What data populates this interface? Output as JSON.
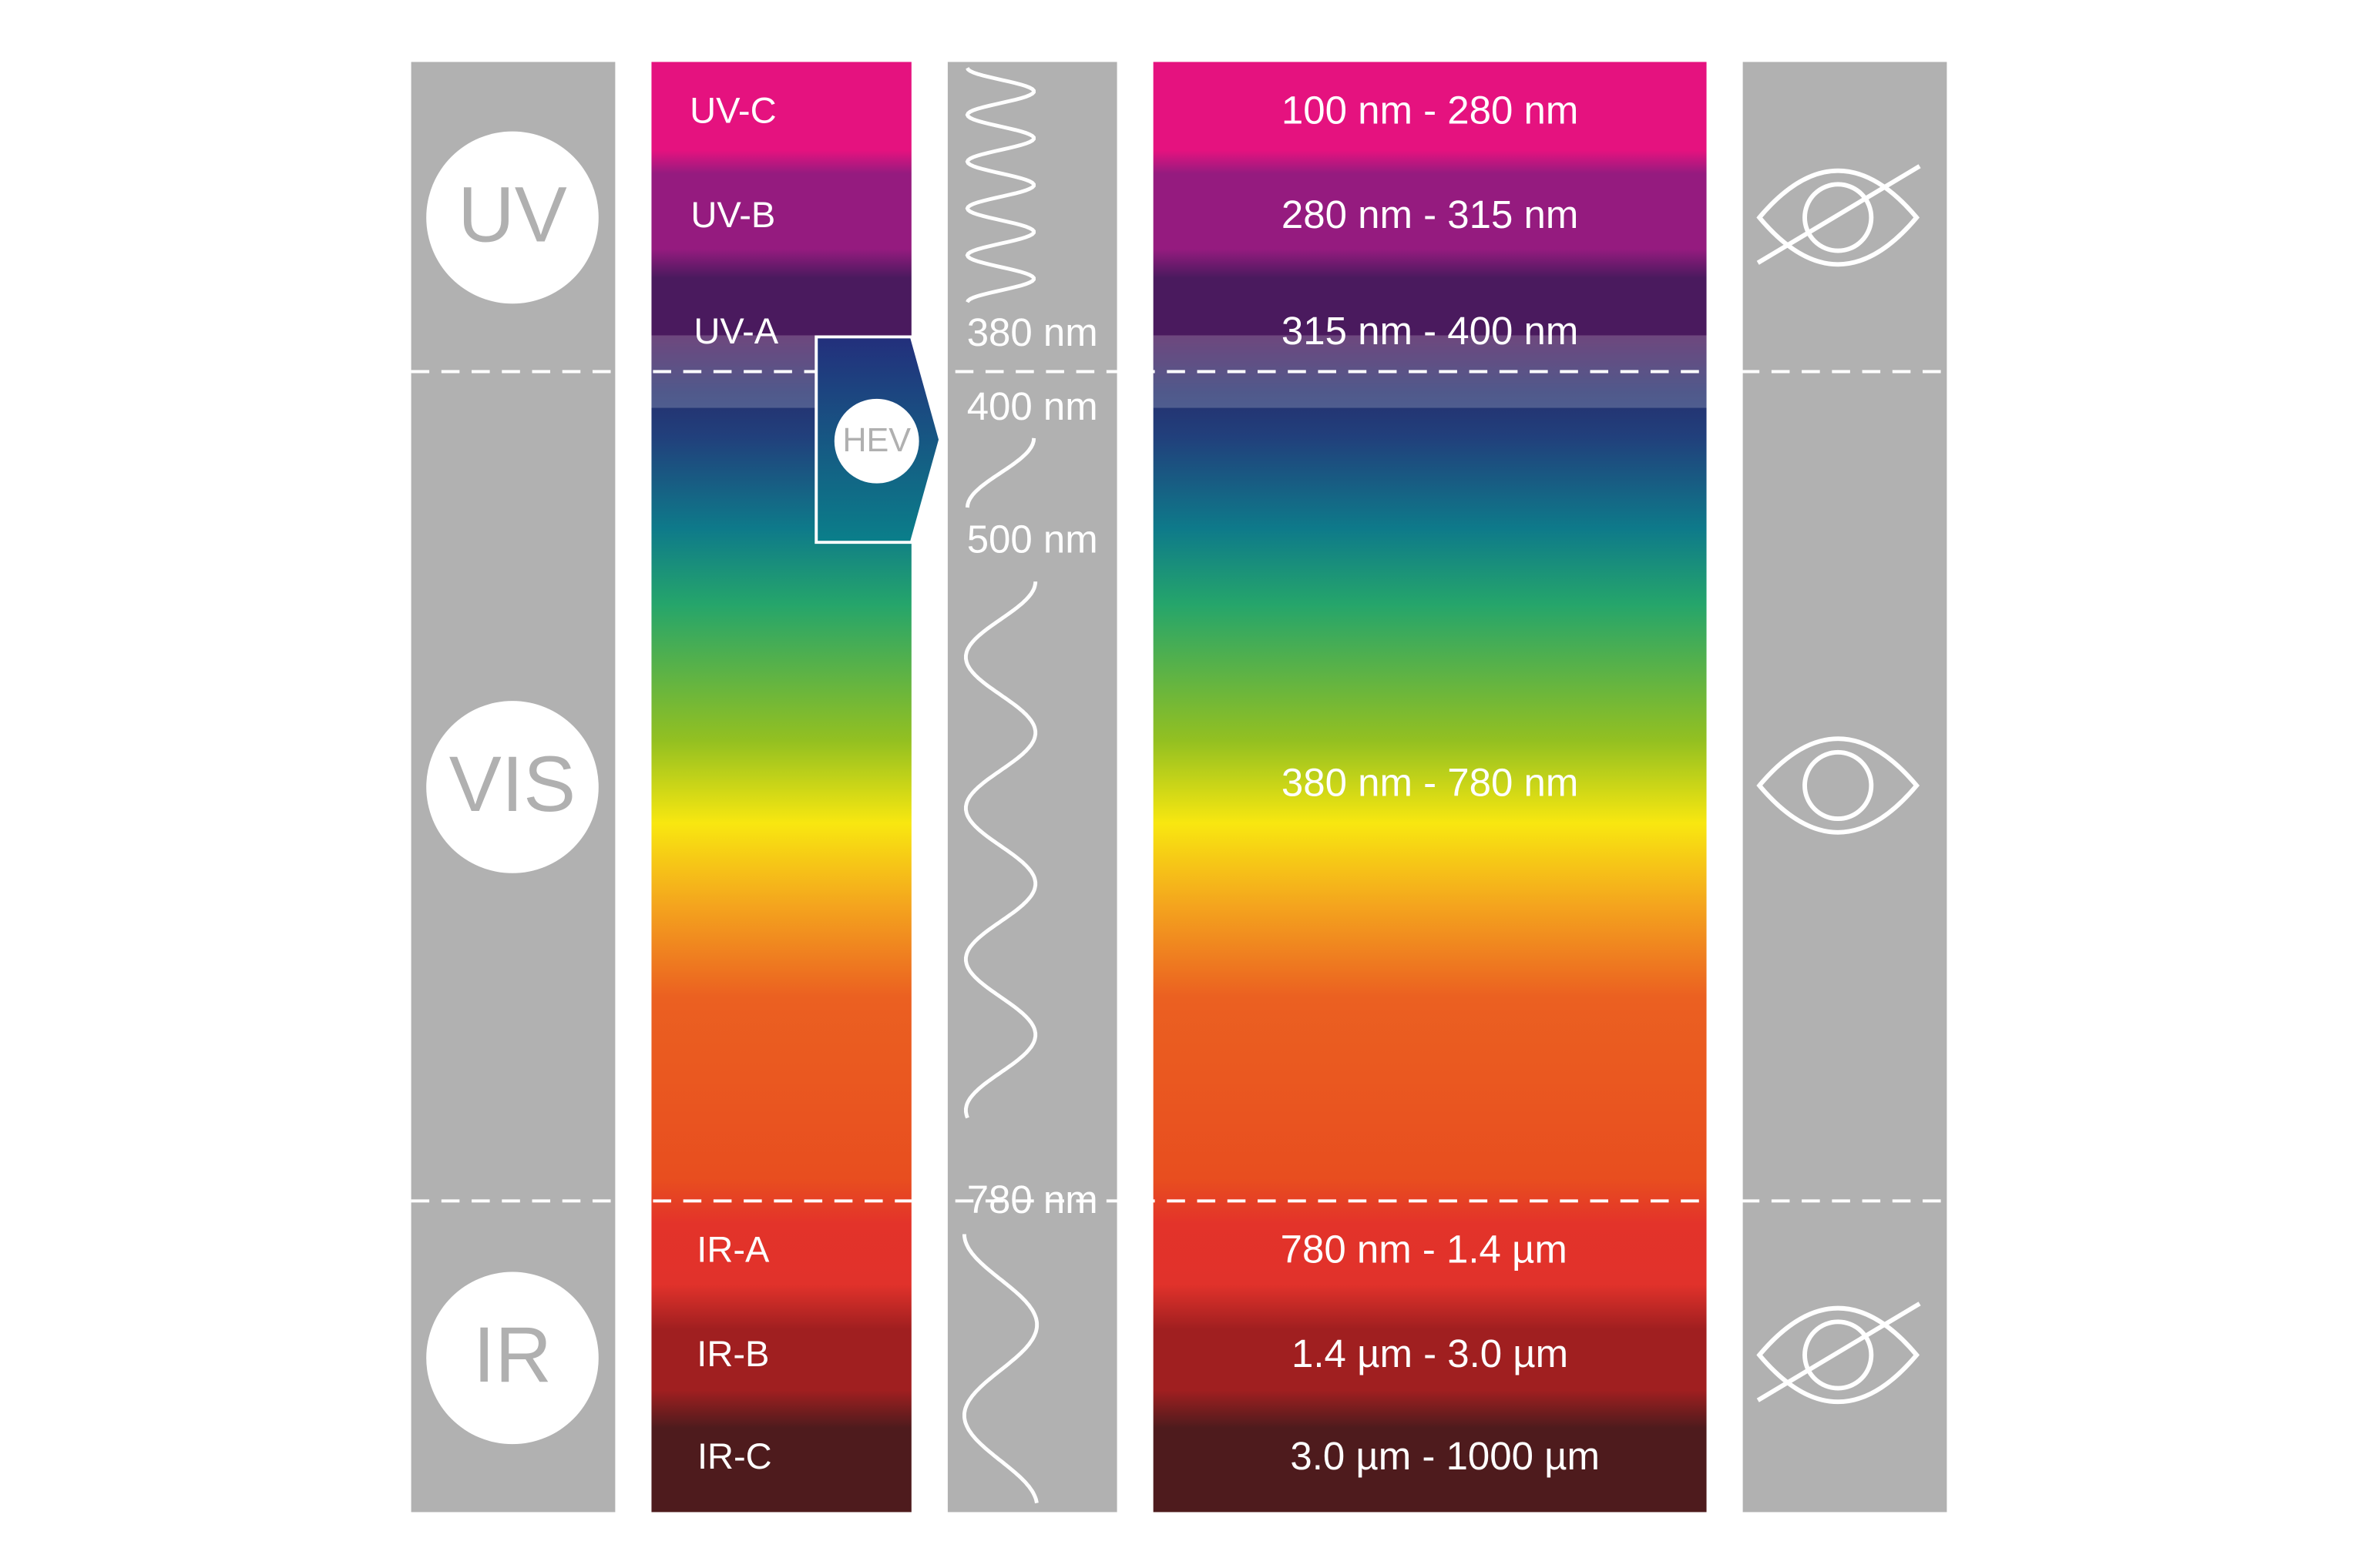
{
  "spectrum_regions": [
    {
      "label": "UV"
    },
    {
      "label": "VIS"
    },
    {
      "label": "IR"
    }
  ],
  "bands": [
    {
      "label": "UV-C",
      "range": "100 nm - 280 nm"
    },
    {
      "label": "UV-B",
      "range": "280 nm - 315 nm"
    },
    {
      "label": "UV-A",
      "range": "315 nm - 400 nm"
    },
    {
      "label": "IR-A",
      "range": "780 nm - 1.4 µm"
    },
    {
      "label": "IR-B",
      "range": "1.4 µm - 3.0 µm"
    },
    {
      "label": "IR-C",
      "range": "3.0 µm - 1000 µm"
    }
  ],
  "visible_range": "380 nm - 780 nm",
  "wavelength_markers": [
    "380 nm",
    "400 nm",
    "500 nm",
    "780 nm"
  ],
  "hev_label": "HEV"
}
